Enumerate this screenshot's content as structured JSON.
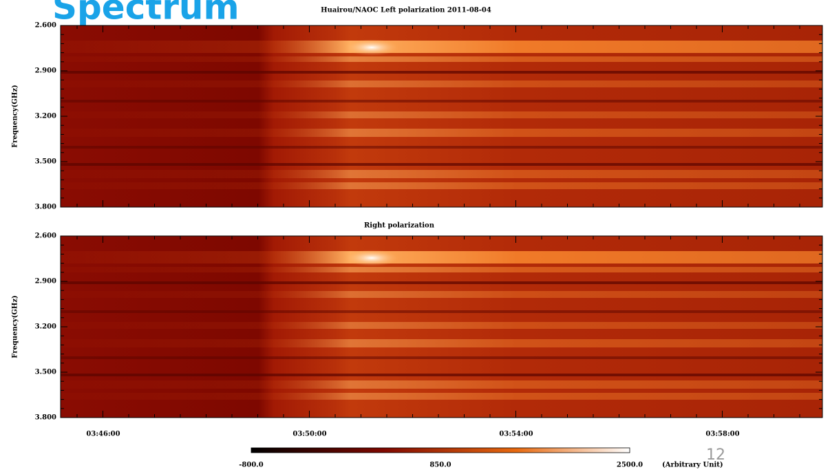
{
  "slide": {
    "title": "Spectrum",
    "page_number": "12",
    "panels": [
      {
        "title": "Huairou/NAOC  Left polarization  2011-08-04",
        "y_label": "Frequency(GHz)",
        "y_ticks": [
          "2.600",
          "2.900",
          "3.200",
          "3.500",
          "3.800"
        ]
      },
      {
        "title": "Right polarization",
        "y_label": "Frequency(GHz)",
        "y_ticks": [
          "2.600",
          "2.900",
          "3.200",
          "3.500",
          "3.800"
        ]
      }
    ],
    "x_ticks": [
      "03:46:00",
      "03:50:00",
      "03:54:00",
      "03:58:00"
    ],
    "colorbar": {
      "labels": [
        "-800.0",
        "850.0",
        "2500.0"
      ],
      "unit": "(Arbitrary Unit)"
    }
  }
}
